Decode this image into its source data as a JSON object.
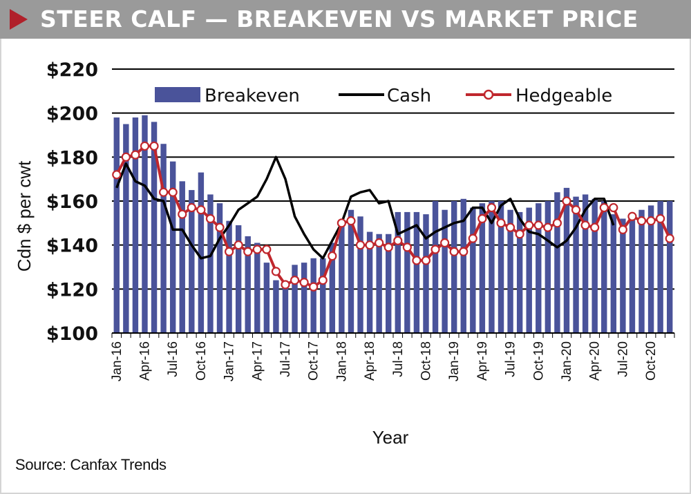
{
  "header": {
    "title": "STEER CALF — BREAKEVEN VS MARKET PRICE"
  },
  "source_note": "Source: Canfax Trends",
  "colors": {
    "breakeven": "#4a539a",
    "cash": "#000000",
    "hedgeable": "#c0272d",
    "title_bar": "#9a9a9a",
    "title_arrow": "#b0202a"
  },
  "chart_data": {
    "type": "bar",
    "xlabel": "Year",
    "ylabel": "Cdn $ per cwt",
    "ylim": [
      100,
      220
    ],
    "yticks": [
      100,
      120,
      140,
      160,
      180,
      200,
      220
    ],
    "ytick_labels": [
      "$100",
      "$120",
      "$140",
      "$160",
      "$180",
      "$200",
      "$220"
    ],
    "grid": "horizontal",
    "legend_position": "top",
    "x_tick_labels": [
      "Jan-16",
      "Apr-16",
      "Jul-16",
      "Oct-16",
      "Jan-17",
      "Apr-17",
      "Jul-17",
      "Oct-17",
      "Jan-18",
      "Apr-18",
      "Jul-18",
      "Oct-18",
      "Jan-19",
      "Apr-19",
      "Jul-19",
      "Oct-19",
      "Jan-20",
      "Apr-20",
      "Jul-20",
      "Oct-20"
    ],
    "months": [
      "2016-01",
      "2016-02",
      "2016-03",
      "2016-04",
      "2016-05",
      "2016-06",
      "2016-07",
      "2016-08",
      "2016-09",
      "2016-10",
      "2016-11",
      "2016-12",
      "2017-01",
      "2017-02",
      "2017-03",
      "2017-04",
      "2017-05",
      "2017-06",
      "2017-07",
      "2017-08",
      "2017-09",
      "2017-10",
      "2017-11",
      "2017-12",
      "2018-01",
      "2018-02",
      "2018-03",
      "2018-04",
      "2018-05",
      "2018-06",
      "2018-07",
      "2018-08",
      "2018-09",
      "2018-10",
      "2018-11",
      "2018-12",
      "2019-01",
      "2019-02",
      "2019-03",
      "2019-04",
      "2019-05",
      "2019-06",
      "2019-07",
      "2019-08",
      "2019-09",
      "2019-10",
      "2019-11",
      "2019-12",
      "2020-01",
      "2020-02",
      "2020-03",
      "2020-04",
      "2020-05",
      "2020-06",
      "2020-07",
      "2020-08",
      "2020-09",
      "2020-10",
      "2020-11",
      "2020-12"
    ],
    "series": [
      {
        "name": "Breakeven",
        "type": "bar",
        "values": [
          198,
          195,
          198,
          199,
          196,
          186,
          178,
          169,
          165,
          173,
          163,
          159,
          151,
          149,
          144,
          141,
          132,
          124,
          121,
          131,
          132,
          134,
          134,
          141,
          150,
          156,
          153,
          146,
          145,
          145,
          155,
          155,
          155,
          154,
          160,
          156,
          160,
          161,
          157,
          159,
          160,
          160,
          156,
          155,
          157,
          159,
          160,
          164,
          166,
          162,
          163,
          161,
          160,
          154,
          152,
          154,
          156,
          158,
          160,
          160
        ]
      },
      {
        "name": "Cash",
        "type": "line",
        "values": [
          166,
          177,
          169,
          167,
          161,
          160,
          147,
          147,
          140,
          134,
          135,
          143,
          149,
          156,
          159,
          162,
          170,
          180,
          170,
          153,
          145,
          138,
          134,
          142,
          150,
          162,
          164,
          165,
          159,
          160,
          145,
          147,
          149,
          143,
          146,
          148,
          150,
          151,
          157,
          157,
          150,
          158,
          161,
          152,
          146,
          145,
          142,
          139,
          142,
          148,
          156,
          161,
          161,
          149
        ]
      },
      {
        "name": "Hedgeable",
        "type": "line",
        "markers": true,
        "values": [
          172,
          180,
          181,
          185,
          185,
          164,
          164,
          154,
          157,
          156,
          152,
          148,
          137,
          140,
          137,
          138,
          138,
          128,
          122,
          124,
          123,
          121,
          124,
          135,
          150,
          151,
          140,
          140,
          141,
          139,
          142,
          139,
          133,
          133,
          138,
          141,
          137,
          137,
          143,
          152,
          157,
          150,
          148,
          145,
          149,
          149,
          148,
          150,
          160,
          156,
          149,
          148,
          157,
          157,
          147,
          153,
          151,
          151,
          152,
          143
        ]
      }
    ]
  }
}
